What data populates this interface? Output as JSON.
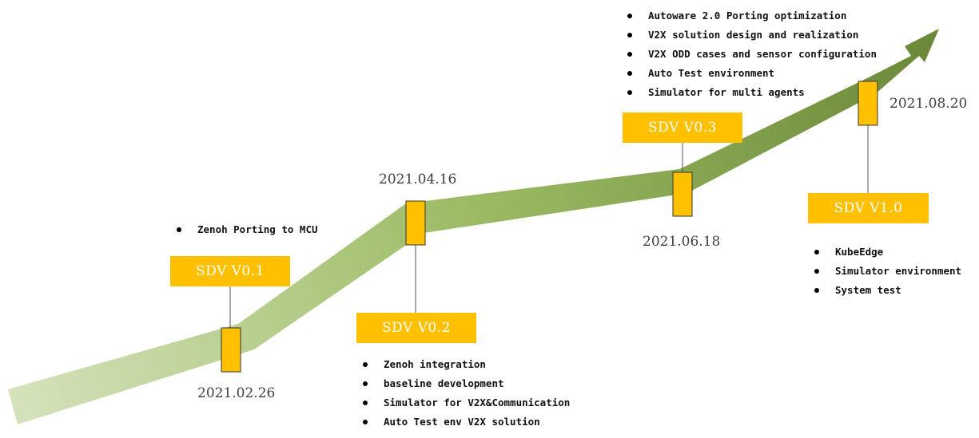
{
  "milestones": [
    {
      "version": "SDV V0.1",
      "date": "2021.02.26",
      "items": [
        "Zenoh Porting to MCU"
      ]
    },
    {
      "version": "SDV V0.2",
      "date": "2021.04.16",
      "items": [
        "Zenoh integration",
        "baseline development",
        "Simulator for V2X&Communication",
        "Auto Test env V2X solution"
      ]
    },
    {
      "version": "SDV V0.3",
      "date": "2021.06.18",
      "items": [
        "Autoware 2.0 Porting optimization",
        "V2X solution design and realization",
        "V2X ODD cases and sensor configuration",
        "Auto Test environment",
        "Simulator for multi agents"
      ]
    },
    {
      "version": "SDV V1.0",
      "date": "2021.08.20",
      "items": [
        "KubeEdge",
        "Simulator environment",
        "System test"
      ]
    }
  ],
  "colors": {
    "marker": "#ffc000",
    "arrow_light": "#d2e0b6",
    "arrow_mid": "#a3c16c",
    "arrow_dark": "#6c8a3c"
  },
  "icons": {
    "arrow": "timeline-arrow-icon",
    "marker": "milestone-marker-icon"
  }
}
